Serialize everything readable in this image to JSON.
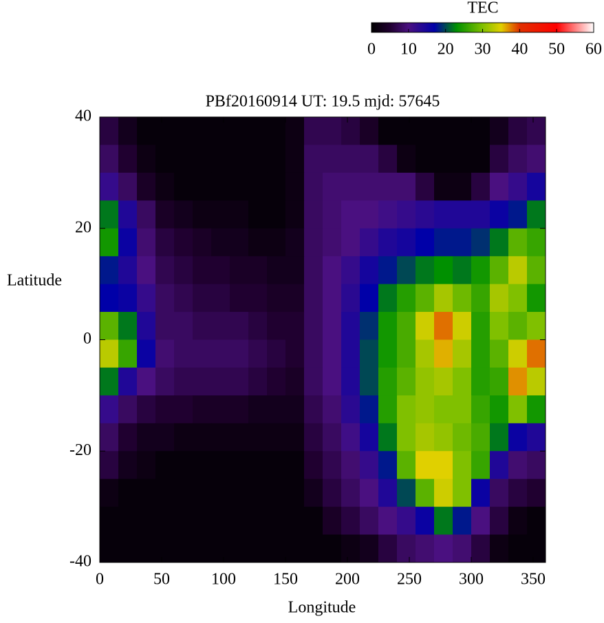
{
  "chart_data": {
    "type": "heatmap",
    "title": "PBf20160914  UT: 19.5  mjd: 57645",
    "x_label": "Longitude",
    "y_label": "Latitude",
    "colorbar_label": "TEC",
    "xlim": [
      0,
      360
    ],
    "xticks": [
      0,
      50,
      100,
      150,
      200,
      250,
      300,
      350
    ],
    "ylim": [
      -40,
      40
    ],
    "yticks": [
      -40,
      -20,
      0,
      20,
      40
    ],
    "clim": [
      0,
      60
    ],
    "cticks": [
      0,
      10,
      20,
      30,
      40,
      50,
      60
    ],
    "colorscale": [
      [
        0,
        "#000000"
      ],
      [
        5,
        "#200030"
      ],
      [
        10,
        "#4a1080"
      ],
      [
        17,
        "#0000a8"
      ],
      [
        23,
        "#009000"
      ],
      [
        30,
        "#80c000"
      ],
      [
        35,
        "#e0d000"
      ],
      [
        40,
        "#e03000"
      ],
      [
        50,
        "#ff0000"
      ],
      [
        60,
        "#ffffff"
      ]
    ],
    "x": [
      7.5,
      22.5,
      37.5,
      52.5,
      67.5,
      82.5,
      97.5,
      112.5,
      127.5,
      142.5,
      157.5,
      172.5,
      187.5,
      202.5,
      217.5,
      232.5,
      247.5,
      262.5,
      277.5,
      292.5,
      307.5,
      322.5,
      337.5,
      352.5
    ],
    "y": [
      37.5,
      32.5,
      27.5,
      22.5,
      17.5,
      12.5,
      7.5,
      2.5,
      -2.5,
      -7.5,
      -12.5,
      -17.5,
      -22.5,
      -27.5,
      -32.5,
      -37.5
    ],
    "z": [
      [
        6,
        3,
        1,
        1,
        1,
        1,
        1,
        1,
        1,
        1,
        2,
        7,
        7,
        6,
        4,
        1,
        1,
        1,
        1,
        1,
        1,
        3,
        6,
        7
      ],
      [
        8,
        5,
        2,
        1,
        1,
        1,
        1,
        1,
        1,
        1,
        2,
        8,
        8,
        8,
        8,
        6,
        2,
        1,
        1,
        1,
        1,
        6,
        8,
        9
      ],
      [
        12,
        8,
        4,
        2,
        1,
        1,
        1,
        1,
        1,
        1,
        2,
        8,
        9,
        9,
        9,
        9,
        9,
        6,
        2,
        2,
        6,
        10,
        12,
        15
      ],
      [
        22,
        14,
        8,
        4,
        3,
        2,
        2,
        2,
        1,
        1,
        2,
        8,
        9,
        10,
        10,
        11,
        12,
        13,
        14,
        14,
        14,
        16,
        18,
        22
      ],
      [
        24,
        16,
        9,
        6,
        5,
        4,
        3,
        3,
        2,
        2,
        3,
        8,
        9,
        10,
        12,
        14,
        15,
        17,
        18,
        18,
        19,
        22,
        28,
        26
      ],
      [
        18,
        14,
        10,
        7,
        6,
        5,
        5,
        4,
        4,
        3,
        3,
        8,
        10,
        12,
        15,
        18,
        20,
        22,
        23,
        22,
        24,
        28,
        33,
        28
      ],
      [
        17,
        16,
        12,
        8,
        7,
        6,
        6,
        5,
        5,
        4,
        4,
        8,
        10,
        13,
        17,
        22,
        25,
        28,
        32,
        29,
        26,
        32,
        30,
        24
      ],
      [
        28,
        22,
        14,
        8,
        8,
        7,
        7,
        7,
        6,
        5,
        5,
        8,
        10,
        14,
        19,
        24,
        27,
        34,
        38,
        34,
        25,
        30,
        28,
        30
      ],
      [
        33,
        26,
        16,
        9,
        8,
        8,
        8,
        8,
        7,
        6,
        5,
        8,
        10,
        14,
        20,
        24,
        27,
        32,
        36,
        32,
        25,
        28,
        34,
        38
      ],
      [
        22,
        14,
        10,
        8,
        7,
        7,
        7,
        7,
        6,
        5,
        4,
        8,
        10,
        14,
        20,
        25,
        28,
        31,
        32,
        30,
        25,
        26,
        37,
        33
      ],
      [
        12,
        8,
        6,
        5,
        5,
        4,
        4,
        4,
        3,
        3,
        3,
        7,
        9,
        13,
        18,
        25,
        30,
        31,
        30,
        30,
        26,
        24,
        30,
        24
      ],
      [
        8,
        5,
        3,
        3,
        2,
        2,
        2,
        2,
        2,
        2,
        2,
        6,
        8,
        11,
        15,
        22,
        30,
        32,
        31,
        29,
        27,
        22,
        16,
        14
      ],
      [
        6,
        3,
        2,
        1,
        1,
        1,
        1,
        1,
        1,
        1,
        1,
        5,
        7,
        9,
        12,
        18,
        28,
        35,
        35,
        30,
        26,
        14,
        9,
        8
      ],
      [
        2,
        1,
        1,
        1,
        1,
        1,
        1,
        1,
        1,
        1,
        1,
        3,
        6,
        8,
        10,
        14,
        20,
        28,
        34,
        30,
        16,
        8,
        6,
        5
      ],
      [
        1,
        1,
        1,
        1,
        1,
        1,
        1,
        1,
        1,
        1,
        1,
        1,
        4,
        6,
        8,
        10,
        12,
        16,
        22,
        18,
        10,
        6,
        2,
        1
      ],
      [
        1,
        1,
        1,
        1,
        1,
        1,
        1,
        1,
        1,
        1,
        1,
        1,
        1,
        2,
        3,
        6,
        8,
        9,
        10,
        9,
        6,
        2,
        1,
        1
      ]
    ]
  }
}
